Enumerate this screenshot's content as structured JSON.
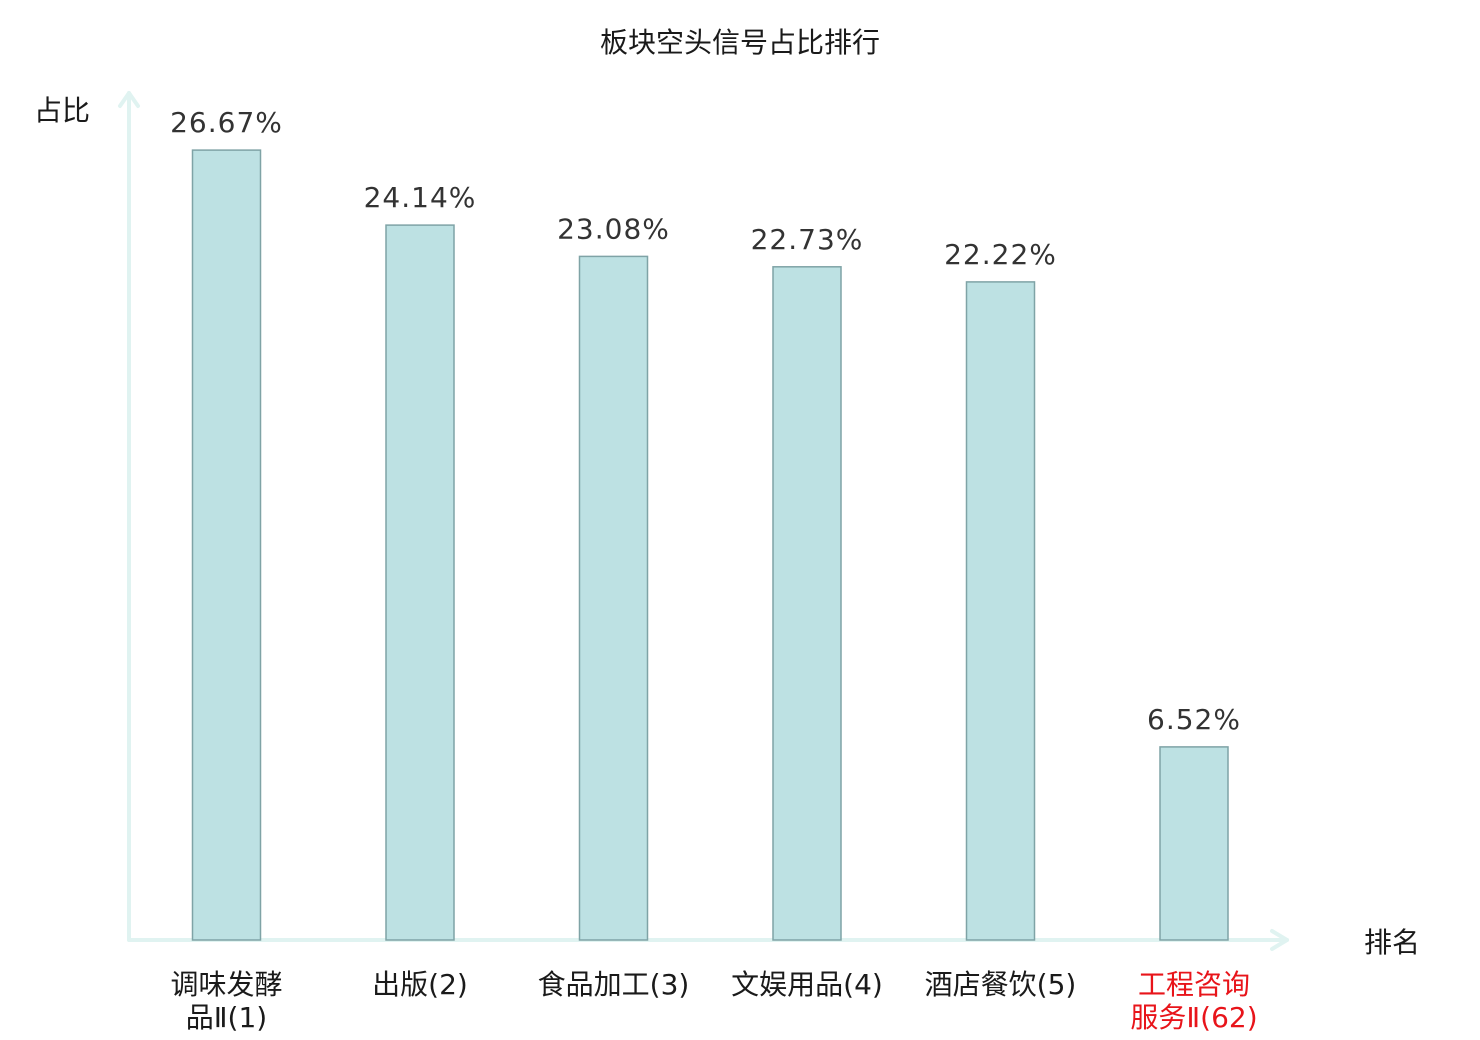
{
  "chart_data": {
    "type": "bar",
    "title": "板块空头信号占比排行",
    "xlabel": "排名",
    "ylabel": "占比",
    "categories": [
      [
        "调味发酵",
        "品Ⅱ(1)"
      ],
      [
        "出版(2)"
      ],
      [
        "食品加工(3)"
      ],
      [
        "文娱用品(4)"
      ],
      [
        "酒店餐饮(5)"
      ],
      [
        "工程咨询",
        "服务Ⅱ(62)"
      ]
    ],
    "values": [
      26.67,
      24.14,
      23.08,
      22.73,
      22.22,
      6.52
    ],
    "value_labels": [
      "26.67%",
      "24.14%",
      "23.08%",
      "22.73%",
      "22.22%",
      "6.52%"
    ],
    "category_colors": [
      "#1a1a1a",
      "#1a1a1a",
      "#1a1a1a",
      "#1a1a1a",
      "#1a1a1a",
      "#e8141a"
    ],
    "bar_color": "#bde1e3",
    "bar_edge_color": "#7fa3a6",
    "axis_color": "#e0f3f1",
    "ylim": [
      0,
      28.7
    ],
    "grid": false,
    "legend": "none"
  }
}
